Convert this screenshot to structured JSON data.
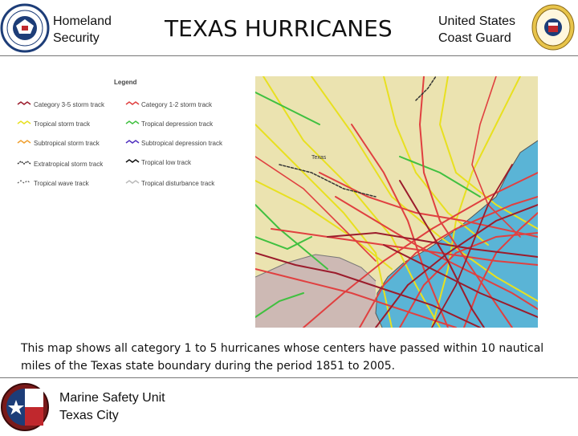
{
  "header": {
    "left_org_line1": "Homeland",
    "left_org_line2": "Security",
    "title": "TEXAS HURRICANES",
    "right_org_line1": "United States",
    "right_org_line2": "Coast Guard"
  },
  "legend": {
    "title": "Legend",
    "items": [
      {
        "label": "Category 3-5 storm track",
        "color": "#9b1c2c"
      },
      {
        "label": "Category 1-2 storm track",
        "color": "#e04040"
      },
      {
        "label": "Tropical storm track",
        "color": "#e8e020"
      },
      {
        "label": "Tropical depression track",
        "color": "#40c040"
      },
      {
        "label": "Subtropical storm track",
        "color": "#f0a030"
      },
      {
        "label": "Subtropical depression track",
        "color": "#5030c0"
      },
      {
        "label": "Extratropical storm track",
        "color": "#333333"
      },
      {
        "label": "Tropical low track",
        "color": "#111111"
      },
      {
        "label": "Tropical wave track",
        "color": "#555555"
      },
      {
        "label": "Tropical disturbance track",
        "color": "#bbbbbb"
      }
    ]
  },
  "map": {
    "place_label": "Texas",
    "land_color": "#ebe3b0",
    "water_color": "#5ab4d6",
    "mexico_color": "#cdb9b4"
  },
  "caption": "This map shows all category 1 to 5 hurricanes whose centers have passed within 10 nautical miles of the Texas state boundary during the period 1851 to 2005.",
  "footer": {
    "unit_line1": "Marine Safety Unit",
    "unit_line2": "Texas City"
  }
}
